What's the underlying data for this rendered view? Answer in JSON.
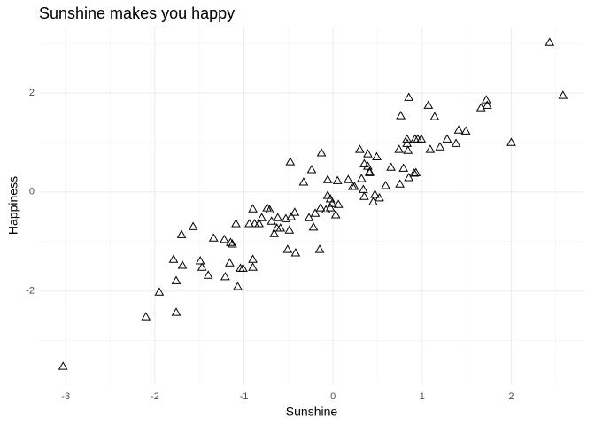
{
  "chart_data": {
    "type": "scatter",
    "title": "Sunshine makes you happy",
    "x_label": "Sunshine",
    "y_label": "Happiness",
    "color": "#000000",
    "marker": "triangle-open",
    "grid": true,
    "xlim": [
      -3.3,
      2.82
    ],
    "ylim": [
      -3.9,
      3.34
    ],
    "xticks": [
      -3,
      -2,
      -1,
      0,
      1,
      2
    ],
    "yticks": [
      -2,
      0,
      2
    ],
    "x": [
      -3.03,
      -2.1,
      -1.95,
      -1.76,
      -1.76,
      -1.79,
      -1.69,
      -1.7,
      -1.57,
      -1.49,
      -1.47,
      -1.4,
      -1.34,
      -1.22,
      -1.21,
      -1.16,
      -1.15,
      -1.13,
      -1.09,
      -1.07,
      -1.04,
      -1.01,
      -0.94,
      -0.9,
      -0.9,
      -0.9,
      -0.88,
      -0.83,
      -0.8,
      -0.74,
      -0.71,
      -0.69,
      -0.66,
      -0.63,
      -0.62,
      -0.59,
      -0.53,
      -0.51,
      -0.49,
      -0.47,
      -0.48,
      -0.43,
      -0.42,
      -0.33,
      -0.27,
      -0.24,
      -0.22,
      -0.2,
      -0.15,
      -0.14,
      -0.13,
      -0.08,
      -0.06,
      -0.06,
      -0.03,
      -0.01,
      -0.03,
      0.03,
      0.05,
      0.06,
      0.17,
      0.22,
      0.24,
      0.3,
      0.32,
      0.34,
      0.35,
      0.35,
      0.39,
      0.39,
      0.41,
      0.41,
      0.45,
      0.47,
      0.49,
      0.52,
      0.59,
      0.65,
      0.74,
      0.75,
      0.76,
      0.79,
      0.83,
      0.83,
      0.84,
      0.85,
      0.85,
      0.91,
      0.92,
      0.93,
      0.95,
      0.99,
      1.07,
      1.09,
      1.14,
      1.2,
      1.28,
      1.38,
      1.41,
      1.49,
      1.66,
      1.72,
      1.73,
      2.0,
      2.43,
      2.58
    ],
    "y": [
      -3.52,
      -2.52,
      -2.02,
      -2.43,
      -1.79,
      -1.36,
      -1.48,
      -0.86,
      -0.7,
      -1.39,
      -1.52,
      -1.68,
      -0.93,
      -0.96,
      -1.71,
      -1.43,
      -1.02,
      -1.05,
      -0.64,
      -1.91,
      -1.54,
      -1.54,
      -0.64,
      -0.34,
      -1.36,
      -1.52,
      -0.64,
      -0.64,
      -0.52,
      -0.32,
      -0.36,
      -0.59,
      -0.84,
      -0.73,
      -0.52,
      -0.73,
      -0.54,
      -1.16,
      -0.77,
      -0.5,
      0.61,
      -0.41,
      -1.23,
      0.2,
      -0.52,
      0.45,
      -0.71,
      -0.43,
      -1.16,
      -0.32,
      0.79,
      -0.36,
      -0.07,
      0.25,
      -0.14,
      -0.23,
      -0.32,
      -0.46,
      0.23,
      -0.25,
      0.25,
      0.11,
      0.11,
      0.86,
      0.27,
      0.05,
      0.57,
      -0.09,
      0.77,
      0.52,
      0.39,
      0.41,
      -0.2,
      -0.05,
      0.71,
      -0.12,
      0.13,
      0.5,
      0.86,
      0.16,
      1.54,
      0.48,
      0.98,
      1.07,
      0.84,
      1.91,
      0.29,
      0.38,
      1.07,
      0.39,
      1.07,
      1.07,
      1.75,
      0.86,
      1.52,
      0.91,
      1.07,
      0.98,
      1.25,
      1.23,
      1.7,
      1.86,
      1.75,
      1.0,
      3.02,
      1.95
    ]
  }
}
